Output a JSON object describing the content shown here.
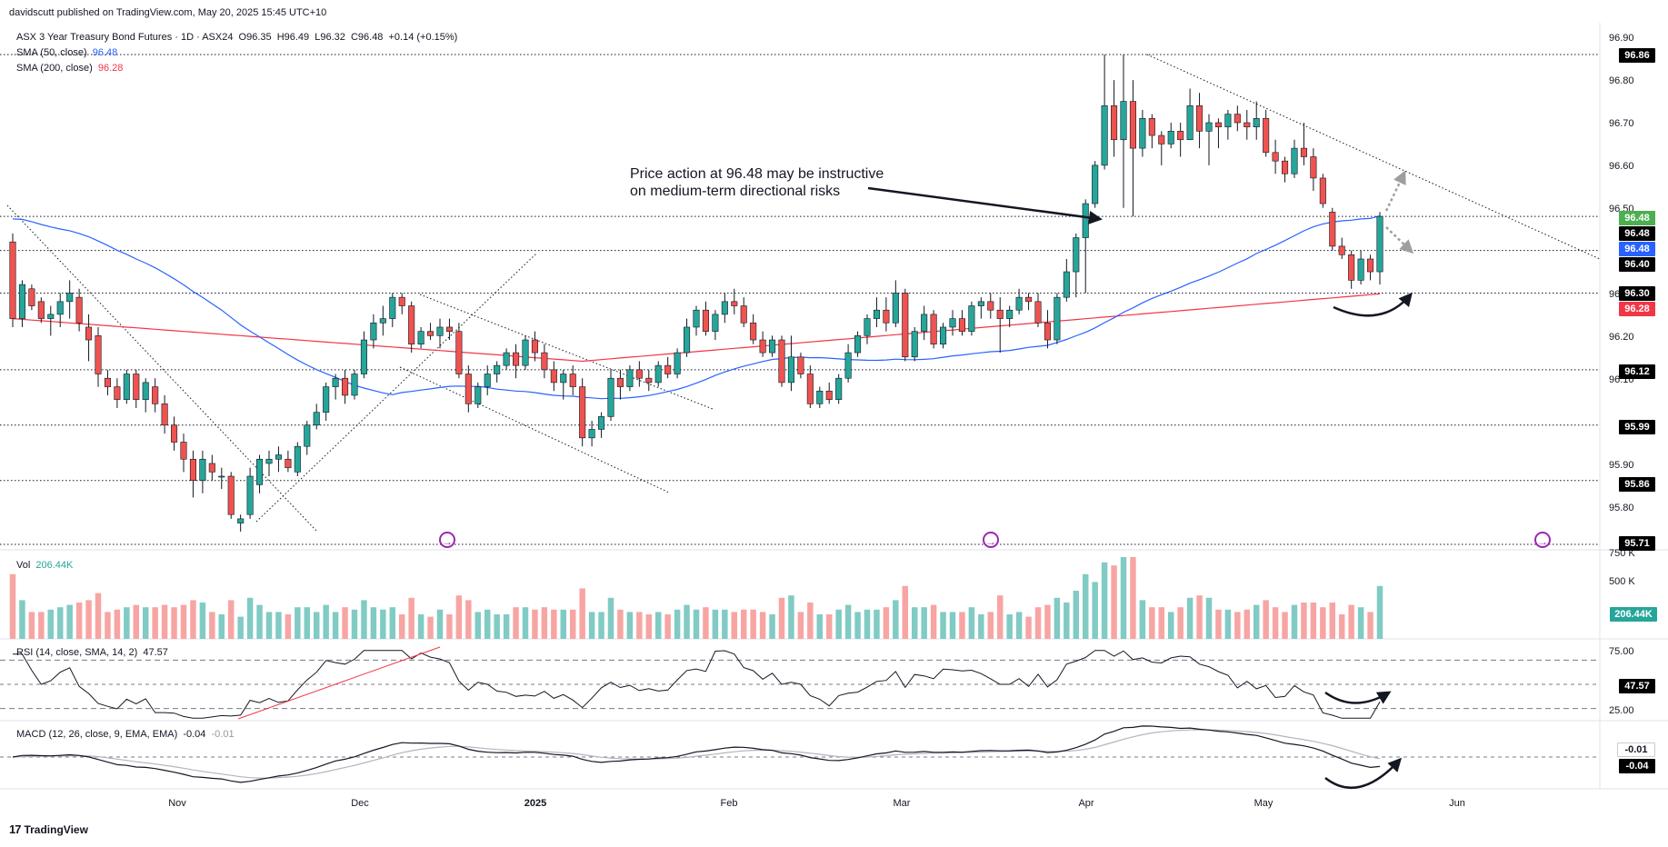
{
  "header": {
    "published": "davidscutt published on TradingView.com, May 20, 2025 15:45 UTC+10"
  },
  "legend": {
    "symbol": "ASX 3 Year Treasury Bond Futures · 1D · ASX24",
    "o": "O96.35",
    "h": "H96.49",
    "l": "L96.32",
    "c": "C96.48",
    "chg": "+0.14 (+0.15%)",
    "sma50_label": "SMA (50, close)",
    "sma50_value": "96.48",
    "sma200_label": "SMA (200, close)",
    "sma200_value": "96.28",
    "vol_label": "Vol",
    "vol_value": "206.44K",
    "rsi_label": "RSI (14, close, SMA, 14, 2)",
    "rsi_value": "47.57",
    "macd_label": "MACD (12, 26, close, 9, EMA, EMA)",
    "macd_value": "-0.04",
    "macd_value2": "-0.01"
  },
  "annotation": {
    "line1": "Price action at 96.48 may be instructive",
    "line2": "on medium-term directional risks"
  },
  "axis": {
    "price_ticks": [
      "96.90",
      "96.80",
      "96.70",
      "96.60",
      "96.50",
      "96.40",
      "96.30",
      "96.20",
      "96.10",
      "95.90",
      "95.80"
    ],
    "volume_ticks": [
      "750 K",
      "500 K"
    ],
    "rsi_ticks": [
      "75.00",
      "25.00"
    ],
    "x_labels": [
      "Nov",
      "Dec",
      "2025",
      "Feb",
      "Mar",
      "Apr",
      "May",
      "Jun"
    ]
  },
  "tags": {
    "t9686": "96.86",
    "close": "96.48",
    "black_9648": "96.48",
    "sma50": "96.48",
    "t9640": "96.40",
    "t9630": "96.30",
    "sma200": "96.28",
    "t9612": "96.12",
    "t9599": "95.99",
    "t9586": "95.86",
    "t9571": "95.71",
    "vol": "206.44K",
    "rsi": "47.57",
    "macd_signal": "-0.01",
    "macd": "-0.04"
  },
  "colors": {
    "up": "#26a69a",
    "down": "#ef5350",
    "sma50": "#2962ff",
    "sma200": "#f23645",
    "vol_up": "#80cbc4",
    "vol_down": "#f7a5a3",
    "grid": "#dde0e6"
  },
  "branding": "TradingView",
  "chart_data": [
    {
      "type": "candlestick",
      "title": "ASX 3 Year Treasury Bond Futures · 1D · ASX24",
      "ylim": [
        95.71,
        96.92
      ],
      "horizontal_levels": [
        96.86,
        96.48,
        96.4,
        96.3,
        96.12,
        95.99,
        95.86,
        95.71
      ],
      "sma50_last": 96.48,
      "sma200_last": 96.28,
      "candles": [
        [
          96.42,
          96.44,
          96.22,
          96.24
        ],
        [
          96.24,
          96.33,
          96.22,
          96.32
        ],
        [
          96.31,
          96.32,
          96.26,
          96.27
        ],
        [
          96.28,
          96.29,
          96.23,
          96.24
        ],
        [
          96.24,
          96.27,
          96.2,
          96.25
        ],
        [
          96.25,
          96.3,
          96.22,
          96.28
        ],
        [
          96.28,
          96.33,
          96.24,
          96.3
        ],
        [
          96.29,
          96.31,
          96.21,
          96.23
        ],
        [
          96.22,
          96.25,
          96.14,
          96.19
        ],
        [
          96.2,
          96.22,
          96.08,
          96.11
        ],
        [
          96.1,
          96.12,
          96.06,
          96.08
        ],
        [
          96.08,
          96.1,
          96.03,
          96.05
        ],
        [
          96.05,
          96.12,
          96.04,
          96.11
        ],
        [
          96.11,
          96.12,
          96.03,
          96.05
        ],
        [
          96.05,
          96.1,
          96.02,
          96.09
        ],
        [
          96.08,
          96.1,
          96.02,
          96.04
        ],
        [
          96.04,
          96.06,
          95.97,
          95.99
        ],
        [
          95.99,
          96.01,
          95.93,
          95.95
        ],
        [
          95.95,
          95.97,
          95.88,
          95.91
        ],
        [
          95.91,
          95.93,
          95.82,
          95.86
        ],
        [
          95.86,
          95.93,
          95.83,
          95.91
        ],
        [
          95.9,
          95.92,
          95.86,
          95.88
        ],
        [
          95.87,
          95.89,
          95.84,
          95.87
        ],
        [
          95.87,
          95.88,
          95.77,
          95.78
        ],
        [
          95.76,
          95.78,
          95.74,
          95.77
        ],
        [
          95.78,
          95.89,
          95.77,
          95.87
        ],
        [
          95.85,
          95.92,
          95.83,
          95.91
        ],
        [
          95.9,
          95.93,
          95.87,
          95.91
        ],
        [
          95.91,
          95.94,
          95.88,
          95.92
        ],
        [
          95.91,
          95.93,
          95.88,
          95.89
        ],
        [
          95.88,
          95.95,
          95.87,
          95.94
        ],
        [
          95.94,
          96.0,
          95.92,
          95.99
        ],
        [
          95.99,
          96.04,
          95.98,
          96.02
        ],
        [
          96.02,
          96.09,
          96.0,
          96.08
        ],
        [
          96.08,
          96.11,
          96.05,
          96.1
        ],
        [
          96.1,
          96.12,
          96.04,
          96.06
        ],
        [
          96.06,
          96.12,
          96.05,
          96.11
        ],
        [
          96.11,
          96.21,
          96.1,
          96.19
        ],
        [
          96.19,
          96.25,
          96.17,
          96.23
        ],
        [
          96.23,
          96.27,
          96.2,
          96.24
        ],
        [
          96.24,
          96.3,
          96.22,
          96.29
        ],
        [
          96.29,
          96.3,
          96.25,
          96.27
        ],
        [
          96.27,
          96.28,
          96.16,
          96.18
        ],
        [
          96.18,
          96.22,
          96.17,
          96.21
        ],
        [
          96.21,
          96.23,
          96.19,
          96.2
        ],
        [
          96.2,
          96.24,
          96.17,
          96.22
        ],
        [
          96.22,
          96.24,
          96.19,
          96.21
        ],
        [
          96.21,
          96.23,
          96.1,
          96.11
        ],
        [
          96.11,
          96.13,
          96.02,
          96.04
        ],
        [
          96.04,
          96.09,
          96.03,
          96.08
        ],
        [
          96.08,
          96.13,
          96.06,
          96.11
        ],
        [
          96.11,
          96.14,
          96.09,
          96.13
        ],
        [
          96.13,
          96.17,
          96.12,
          96.16
        ],
        [
          96.16,
          96.18,
          96.1,
          96.13
        ],
        [
          96.13,
          96.2,
          96.12,
          96.19
        ],
        [
          96.19,
          96.21,
          96.14,
          96.16
        ],
        [
          96.16,
          96.18,
          96.1,
          96.12
        ],
        [
          96.12,
          96.14,
          96.07,
          96.09
        ],
        [
          96.09,
          96.12,
          96.05,
          96.11
        ],
        [
          96.11,
          96.13,
          96.06,
          96.08
        ],
        [
          96.08,
          96.1,
          95.94,
          95.96
        ],
        [
          95.96,
          96.0,
          95.94,
          95.98
        ],
        [
          95.98,
          96.02,
          95.96,
          96.01
        ],
        [
          96.01,
          96.12,
          96.0,
          96.1
        ],
        [
          96.1,
          96.12,
          96.05,
          96.08
        ],
        [
          96.08,
          96.13,
          96.07,
          96.12
        ],
        [
          96.12,
          96.14,
          96.08,
          96.1
        ],
        [
          96.1,
          96.12,
          96.07,
          96.09
        ],
        [
          96.09,
          96.14,
          96.08,
          96.13
        ],
        [
          96.13,
          96.15,
          96.1,
          96.11
        ],
        [
          96.11,
          96.17,
          96.1,
          96.16
        ],
        [
          96.16,
          96.24,
          96.15,
          96.22
        ],
        [
          96.22,
          96.27,
          96.2,
          96.26
        ],
        [
          96.26,
          96.28,
          96.2,
          96.21
        ],
        [
          96.21,
          96.26,
          96.19,
          96.25
        ],
        [
          96.25,
          96.3,
          96.23,
          96.28
        ],
        [
          96.28,
          96.31,
          96.25,
          96.27
        ],
        [
          96.27,
          96.29,
          96.22,
          96.23
        ],
        [
          96.23,
          96.25,
          96.18,
          96.19
        ],
        [
          96.19,
          96.21,
          96.15,
          96.16
        ],
        [
          96.16,
          96.2,
          96.15,
          96.19
        ],
        [
          96.19,
          96.2,
          96.08,
          96.09
        ],
        [
          96.09,
          96.2,
          96.07,
          96.15
        ],
        [
          96.15,
          96.16,
          96.1,
          96.11
        ],
        [
          96.11,
          96.13,
          96.03,
          96.04
        ],
        [
          96.04,
          96.08,
          96.03,
          96.07
        ],
        [
          96.07,
          96.09,
          96.04,
          96.05
        ],
        [
          96.05,
          96.11,
          96.04,
          96.1
        ],
        [
          96.1,
          96.18,
          96.09,
          96.16
        ],
        [
          96.16,
          96.21,
          96.15,
          96.2
        ],
        [
          96.2,
          96.25,
          96.18,
          96.24
        ],
        [
          96.24,
          96.29,
          96.22,
          96.26
        ],
        [
          96.26,
          96.29,
          96.21,
          96.23
        ],
        [
          96.23,
          96.33,
          96.22,
          96.3
        ],
        [
          96.3,
          96.31,
          96.14,
          96.15
        ],
        [
          96.15,
          96.22,
          96.14,
          96.21
        ],
        [
          96.21,
          96.27,
          96.19,
          96.25
        ],
        [
          96.25,
          96.26,
          96.17,
          96.18
        ],
        [
          96.18,
          96.23,
          96.17,
          96.22
        ],
        [
          96.22,
          96.26,
          96.2,
          96.24
        ],
        [
          96.24,
          96.26,
          96.2,
          96.21
        ],
        [
          96.21,
          96.28,
          96.2,
          96.27
        ],
        [
          96.27,
          96.29,
          96.24,
          96.28
        ],
        [
          96.28,
          96.3,
          96.24,
          96.26
        ],
        [
          96.26,
          96.29,
          96.16,
          96.24
        ],
        [
          96.24,
          96.27,
          96.22,
          96.26
        ],
        [
          96.26,
          96.31,
          96.25,
          96.29
        ],
        [
          96.29,
          96.3,
          96.26,
          96.28
        ],
        [
          96.28,
          96.3,
          96.22,
          96.23
        ],
        [
          96.23,
          96.26,
          96.17,
          96.19
        ],
        [
          96.19,
          96.3,
          96.18,
          96.29
        ],
        [
          96.29,
          96.38,
          96.28,
          96.35
        ],
        [
          96.35,
          96.44,
          96.29,
          96.43
        ],
        [
          96.43,
          96.52,
          96.3,
          96.51
        ],
        [
          96.51,
          96.61,
          96.5,
          96.6
        ],
        [
          96.6,
          96.86,
          96.59,
          96.74
        ],
        [
          96.74,
          96.8,
          96.62,
          96.66
        ],
        [
          96.66,
          96.86,
          96.5,
          96.75
        ],
        [
          96.75,
          96.8,
          96.48,
          96.64
        ],
        [
          96.64,
          96.73,
          96.62,
          96.71
        ],
        [
          96.71,
          96.72,
          96.64,
          96.67
        ],
        [
          96.67,
          96.68,
          96.6,
          96.65
        ],
        [
          96.65,
          96.7,
          96.64,
          96.68
        ],
        [
          96.68,
          96.7,
          96.62,
          96.66
        ],
        [
          96.66,
          96.78,
          96.66,
          96.74
        ],
        [
          96.74,
          96.77,
          96.64,
          96.68
        ],
        [
          96.68,
          96.72,
          96.6,
          96.7
        ],
        [
          96.7,
          96.71,
          96.64,
          96.69
        ],
        [
          96.69,
          96.73,
          96.66,
          96.72
        ],
        [
          96.72,
          96.74,
          96.68,
          96.7
        ],
        [
          96.7,
          96.73,
          96.66,
          96.69
        ],
        [
          96.69,
          96.75,
          96.66,
          96.71
        ],
        [
          96.71,
          96.73,
          96.62,
          96.63
        ],
        [
          96.63,
          96.66,
          96.58,
          96.61
        ],
        [
          96.61,
          96.62,
          96.56,
          96.58
        ],
        [
          96.58,
          96.66,
          96.57,
          96.64
        ],
        [
          96.64,
          96.7,
          96.6,
          96.62
        ],
        [
          96.62,
          96.64,
          96.54,
          96.57
        ],
        [
          96.57,
          96.58,
          96.5,
          96.51
        ],
        [
          96.49,
          96.5,
          96.4,
          96.41
        ],
        [
          96.41,
          96.43,
          96.38,
          96.39
        ],
        [
          96.39,
          96.4,
          96.31,
          96.33
        ],
        [
          96.33,
          96.4,
          96.32,
          96.38
        ],
        [
          96.38,
          96.39,
          96.33,
          96.35
        ],
        [
          96.35,
          96.49,
          96.32,
          96.48
        ]
      ]
    },
    {
      "type": "bar",
      "title": "Vol",
      "last": "206.44K"
    },
    {
      "type": "line",
      "title": "RSI (14, close, SMA, 14, 2)",
      "ylim": [
        20,
        80
      ],
      "levels": [
        70,
        50,
        30
      ],
      "last": 47.57
    },
    {
      "type": "line",
      "title": "MACD (12, 26, close, 9, EMA, EMA)",
      "macd_last": -0.04,
      "signal_last": -0.01
    }
  ]
}
